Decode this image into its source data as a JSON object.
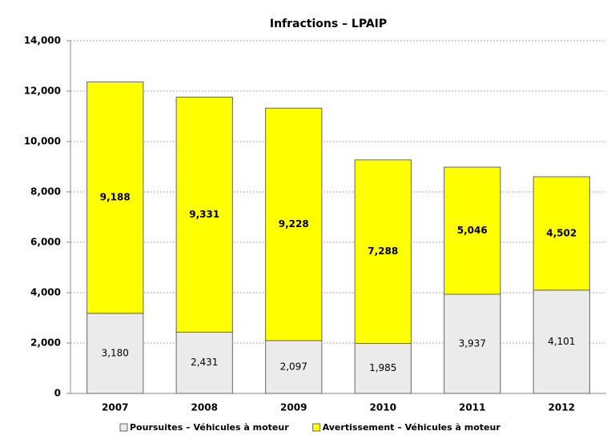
{
  "chart_data": {
    "type": "stacked_bar",
    "title": "Infractions – LPAIP",
    "categories": [
      "2007",
      "2008",
      "2009",
      "2010",
      "2011",
      "2012"
    ],
    "series": [
      {
        "name": "Poursuites – Véhicules à moteur",
        "color": "#ebebeb",
        "values": [
          3180,
          2431,
          2097,
          1985,
          3937,
          4101
        ],
        "value_labels": [
          "3,180",
          "2,431",
          "2,097",
          "1,985",
          "3,937",
          "4,101"
        ]
      },
      {
        "name": "Avertissement – Véhicules à moteur",
        "color": "#ffff00",
        "values": [
          9188,
          9331,
          9228,
          7288,
          5046,
          4502
        ],
        "value_labels": [
          "9,188",
          "9,331",
          "9,228",
          "7,288",
          "5,046",
          "4,502"
        ]
      }
    ],
    "ylim": [
      0,
      14000
    ],
    "yticks": [
      0,
      {
        "value": 2000,
        "label": "2,000"
      },
      {
        "value": 4000,
        "label": "4,000"
      },
      {
        "value": 6000,
        "label": "6,000"
      },
      {
        "value": 8000,
        "label": "8,000"
      },
      {
        "value": 10000,
        "label": "10,000"
      },
      {
        "value": 12000,
        "label": "12,000"
      },
      {
        "value": 14000,
        "label": "14,000"
      }
    ],
    "grid": true,
    "legend": "bottom"
  }
}
